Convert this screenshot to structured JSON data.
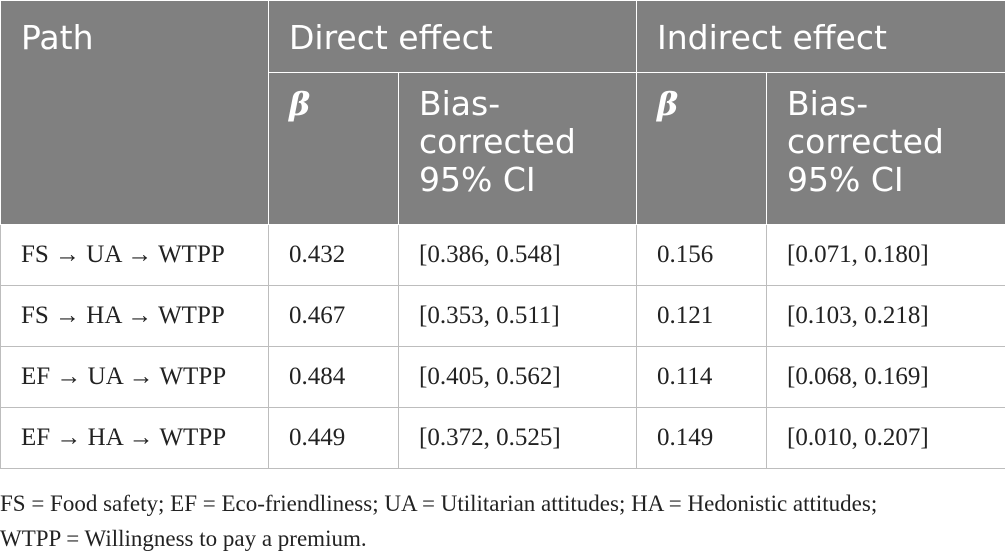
{
  "table": {
    "header_row1": {
      "path": "Path",
      "direct": "Direct effect",
      "indirect": "Indirect effect"
    },
    "header_row2": {
      "beta_direct": "β",
      "ci_direct": "Bias-corrected 95% CI",
      "beta_indirect": "β",
      "ci_indirect": "Bias-corrected 95% CI"
    },
    "rows": [
      {
        "path": "FS → UA → WTPP",
        "direct_beta": "0.432",
        "direct_ci": "[0.386, 0.548]",
        "indirect_beta": "0.156",
        "indirect_ci": "[0.071, 0.180]"
      },
      {
        "path": "FS → HA → WTPP",
        "direct_beta": "0.467",
        "direct_ci": "[0.353, 0.511]",
        "indirect_beta": "0.121",
        "indirect_ci": "[0.103, 0.218]"
      },
      {
        "path": "EF → UA → WTPP",
        "direct_beta": "0.484",
        "direct_ci": "[0.405, 0.562]",
        "indirect_beta": "0.114",
        "indirect_ci": "[0.068, 0.169]"
      },
      {
        "path": "EF → HA → WTPP",
        "direct_beta": "0.449",
        "direct_ci": "[0.372, 0.525]",
        "indirect_beta": "0.149",
        "indirect_ci": "[0.010, 0.207]"
      }
    ]
  },
  "footnote": {
    "line1": "FS = Food safety; EF = Eco-friendliness; UA = Utilitarian attitudes; HA = Hedonistic attitudes;",
    "line2": "WTPP = Willingness to pay a premium."
  },
  "colors": {
    "header_bg": "#808080",
    "header_text": "#ffffff",
    "border": "#bdbdbd"
  }
}
